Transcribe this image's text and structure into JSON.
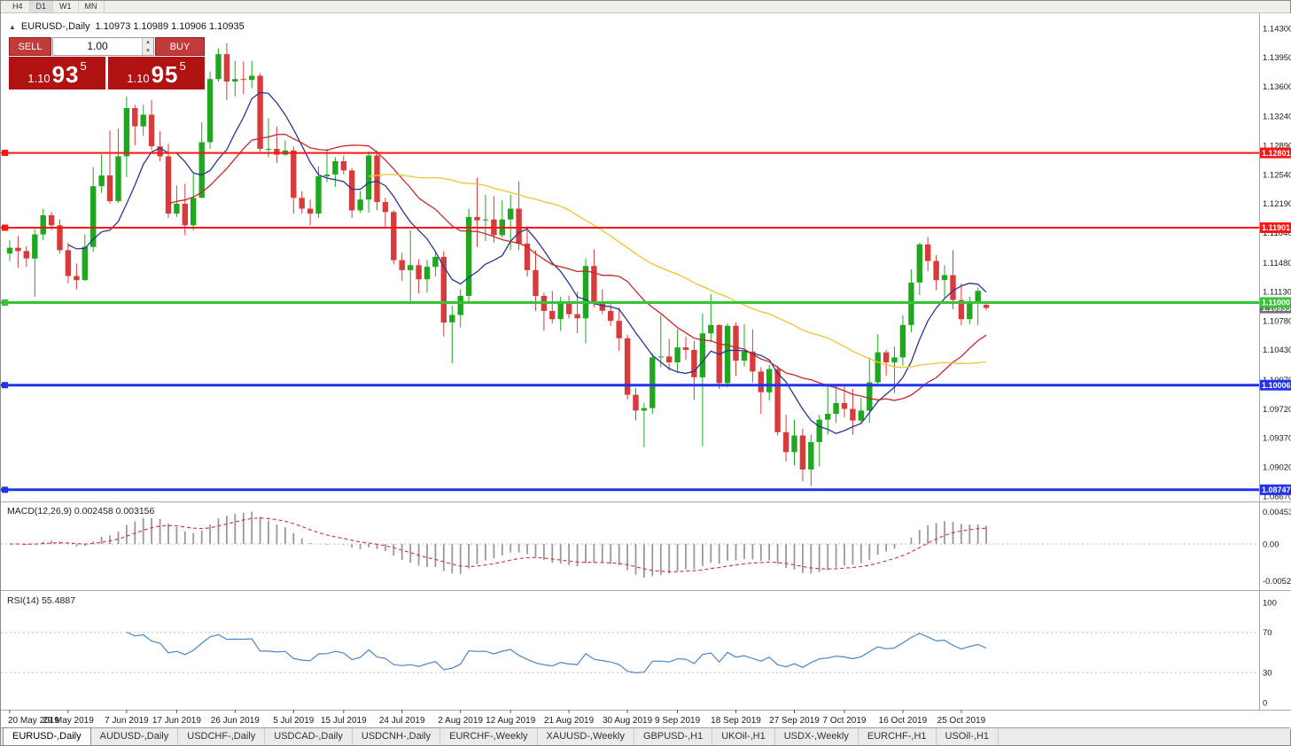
{
  "colors": {
    "bull": "#1FA81F",
    "bear": "#D93B3B",
    "macd_hist": "#999999",
    "macd_signal": "#D03030",
    "rsi_line": "#4A86C8",
    "panel_red": "#B01212",
    "button_red": "#C23B3B",
    "current_tag": "#707070"
  },
  "toolbar": {
    "timeframes": [
      "H4",
      "D1",
      "W1",
      "MN"
    ],
    "active": "D1"
  },
  "chart_header": {
    "collapse_icon": "▲",
    "title": "EURUSD-,Daily",
    "ohlc": "1.10973 1.10989 1.10906 1.10935"
  },
  "trade_panel": {
    "sell_label": "SELL",
    "buy_label": "BUY",
    "volume": "1.00",
    "sell_price": {
      "big": "1.10",
      "pips": "93",
      "point": "5"
    },
    "buy_price": {
      "big": "1.10",
      "pips": "95",
      "point": "5"
    }
  },
  "price_axis": {
    "ticks": [
      "1.14300",
      "1.13950",
      "1.13600",
      "1.13240",
      "1.12890",
      "1.12540",
      "1.12190",
      "1.11840",
      "1.11480",
      "1.11130",
      "1.10780",
      "1.10430",
      "1.10070",
      "1.09720",
      "1.09370",
      "1.09020",
      "1.08670"
    ]
  },
  "indicators": {
    "macd": {
      "title": "MACD(12,26,9) 0.002458 0.003156",
      "scale": [
        {
          "label": "0.00453",
          "value": 0.00453
        },
        {
          "label": "0.00",
          "value": 0
        },
        {
          "label": "-0.00520",
          "value": -0.0052
        }
      ]
    },
    "rsi": {
      "title": "RSI(14) 55.4887",
      "scale": [
        {
          "label": "100",
          "value": 100
        },
        {
          "label": "70",
          "value": 70
        },
        {
          "label": "30",
          "value": 30
        },
        {
          "label": "0",
          "value": 0
        }
      ]
    }
  },
  "date_axis": {
    "labels": [
      {
        "label": "20 May 2019",
        "candle_index": 0
      },
      {
        "label": "29 May 2019",
        "candle_index": 7
      },
      {
        "label": "7 Jun 2019",
        "candle_index": 14
      },
      {
        "label": "17 Jun 2019",
        "candle_index": 20
      },
      {
        "label": "26 Jun 2019",
        "candle_index": 27
      },
      {
        "label": "5 Jul 2019",
        "candle_index": 34
      },
      {
        "label": "15 Jul 2019",
        "candle_index": 40
      },
      {
        "label": "24 Jul 2019",
        "candle_index": 47
      },
      {
        "label": "2 Aug 2019",
        "candle_index": 54
      },
      {
        "label": "12 Aug 2019",
        "candle_index": 60
      },
      {
        "label": "21 Aug 2019",
        "candle_index": 67
      },
      {
        "label": "30 Aug 2019",
        "candle_index": 74
      },
      {
        "label": "9 Sep 2019",
        "candle_index": 80
      },
      {
        "label": "18 Sep 2019",
        "candle_index": 87
      },
      {
        "label": "27 Sep 2019",
        "candle_index": 94
      },
      {
        "label": "7 Oct 2019",
        "candle_index": 100
      },
      {
        "label": "16 Oct 2019",
        "candle_index": 107
      },
      {
        "label": "25 Oct 2019",
        "candle_index": 114
      }
    ]
  },
  "tabs": [
    {
      "label": "EURUSD-,Daily",
      "active": true
    },
    {
      "label": "AUDUSD-,Daily",
      "active": false
    },
    {
      "label": "USDCHF-,Daily",
      "active": false
    },
    {
      "label": "USDCAD-,Daily",
      "active": false
    },
    {
      "label": "USDCNH-,Daily",
      "active": false
    },
    {
      "label": "EURCHF-,Weekly",
      "active": false
    },
    {
      "label": "XAUUSD-,Weekly",
      "active": false
    },
    {
      "label": "GBPUSD-,H1",
      "active": false
    },
    {
      "label": "UKOil-,H1",
      "active": false
    },
    {
      "label": "USDX-,Weekly",
      "active": false
    },
    {
      "label": "EURCHF-,H1",
      "active": false
    },
    {
      "label": "USOil-,H1",
      "active": false
    }
  ],
  "chart_data": {
    "type": "candlestick",
    "symbol": "EURUSD-",
    "period": "Daily",
    "x_start": "20 May 2019",
    "x_end": "30 Oct 2019",
    "y_range": [
      1.085,
      1.1442
    ],
    "ohlc_last": {
      "open": 1.10973,
      "high": 1.10989,
      "low": 1.10906,
      "close": 1.10935
    },
    "ohlc_format": [
      "open",
      "high",
      "low",
      "close"
    ],
    "candles": [
      [
        1.1159,
        1.1175,
        1.115,
        1.1166
      ],
      [
        1.1166,
        1.118,
        1.1142,
        1.1162
      ],
      [
        1.1162,
        1.1168,
        1.1143,
        1.1153
      ],
      [
        1.1153,
        1.1188,
        1.1107,
        1.1182
      ],
      [
        1.1182,
        1.1213,
        1.1175,
        1.1205
      ],
      [
        1.1205,
        1.1209,
        1.1187,
        1.1193
      ],
      [
        1.1193,
        1.12,
        1.1159,
        1.1163
      ],
      [
        1.1163,
        1.1172,
        1.1123,
        1.1132
      ],
      [
        1.1132,
        1.1147,
        1.1116,
        1.1127
      ],
      [
        1.1127,
        1.1182,
        1.1126,
        1.1167
      ],
      [
        1.1167,
        1.1263,
        1.1161,
        1.124
      ],
      [
        1.124,
        1.1278,
        1.1232,
        1.1253
      ],
      [
        1.1253,
        1.1307,
        1.1219,
        1.1222
      ],
      [
        1.1222,
        1.1309,
        1.122,
        1.1276
      ],
      [
        1.1276,
        1.1348,
        1.1251,
        1.1334
      ],
      [
        1.1334,
        1.1338,
        1.1289,
        1.1312
      ],
      [
        1.1312,
        1.1338,
        1.1301,
        1.1326
      ],
      [
        1.1326,
        1.1344,
        1.1284,
        1.1288
      ],
      [
        1.1288,
        1.1306,
        1.127,
        1.1276
      ],
      [
        1.1276,
        1.1291,
        1.1202,
        1.1207
      ],
      [
        1.1207,
        1.1241,
        1.1203,
        1.1219
      ],
      [
        1.1219,
        1.1243,
        1.1181,
        1.1193
      ],
      [
        1.1193,
        1.1255,
        1.1187,
        1.1226
      ],
      [
        1.1226,
        1.1317,
        1.1226,
        1.1293
      ],
      [
        1.1293,
        1.1378,
        1.1285,
        1.1369
      ],
      [
        1.1369,
        1.1406,
        1.1366,
        1.1399
      ],
      [
        1.1399,
        1.1412,
        1.1344,
        1.1366
      ],
      [
        1.1366,
        1.1391,
        1.1348,
        1.1369
      ],
      [
        1.1369,
        1.139,
        1.1351,
        1.1368
      ],
      [
        1.1368,
        1.1391,
        1.1358,
        1.1373
      ],
      [
        1.1373,
        1.1376,
        1.1281,
        1.1285
      ],
      [
        1.1285,
        1.1322,
        1.1275,
        1.1285
      ],
      [
        1.1285,
        1.1312,
        1.1268,
        1.1278
      ],
      [
        1.1278,
        1.1295,
        1.1277,
        1.1283
      ],
      [
        1.1283,
        1.1288,
        1.1207,
        1.1226
      ],
      [
        1.1226,
        1.1234,
        1.1207,
        1.1213
      ],
      [
        1.1213,
        1.1224,
        1.1193,
        1.1207
      ],
      [
        1.1207,
        1.1264,
        1.1202,
        1.1252
      ],
      [
        1.1252,
        1.1285,
        1.1245,
        1.1254
      ],
      [
        1.1254,
        1.1275,
        1.1239,
        1.127
      ],
      [
        1.127,
        1.1277,
        1.1254,
        1.1259
      ],
      [
        1.1259,
        1.1262,
        1.1202,
        1.1211
      ],
      [
        1.1211,
        1.1234,
        1.1208,
        1.1224
      ],
      [
        1.1224,
        1.1282,
        1.1208,
        1.1277
      ],
      [
        1.1277,
        1.1283,
        1.1211,
        1.1221
      ],
      [
        1.1221,
        1.1226,
        1.119,
        1.1209
      ],
      [
        1.1209,
        1.1211,
        1.1146,
        1.1151
      ],
      [
        1.1151,
        1.116,
        1.1126,
        1.1139
      ],
      [
        1.1139,
        1.1187,
        1.1101,
        1.1145
      ],
      [
        1.1145,
        1.1152,
        1.1111,
        1.1128
      ],
      [
        1.1128,
        1.1151,
        1.1112,
        1.1143
      ],
      [
        1.1143,
        1.1162,
        1.1131,
        1.1155
      ],
      [
        1.1155,
        1.1162,
        1.1059,
        1.1076
      ],
      [
        1.1076,
        1.1096,
        1.1027,
        1.1085
      ],
      [
        1.1085,
        1.1116,
        1.107,
        1.1108
      ],
      [
        1.1108,
        1.1213,
        1.1101,
        1.1203
      ],
      [
        1.1203,
        1.125,
        1.1167,
        1.1199
      ],
      [
        1.1199,
        1.123,
        1.1174,
        1.12
      ],
      [
        1.12,
        1.1228,
        1.1172,
        1.1181
      ],
      [
        1.1181,
        1.1223,
        1.1178,
        1.12
      ],
      [
        1.12,
        1.123,
        1.1163,
        1.1213
      ],
      [
        1.1213,
        1.1246,
        1.1163,
        1.1171
      ],
      [
        1.1171,
        1.1192,
        1.1131,
        1.1139
      ],
      [
        1.1139,
        1.1163,
        1.109,
        1.1108
      ],
      [
        1.1108,
        1.1112,
        1.1066,
        1.109
      ],
      [
        1.109,
        1.1114,
        1.1075,
        1.108
      ],
      [
        1.108,
        1.1107,
        1.1066,
        1.1099
      ],
      [
        1.1099,
        1.1108,
        1.1081,
        1.1086
      ],
      [
        1.1086,
        1.1113,
        1.1063,
        1.1081
      ],
      [
        1.1081,
        1.1153,
        1.1051,
        1.1144
      ],
      [
        1.1144,
        1.1164,
        1.1094,
        1.1101
      ],
      [
        1.1101,
        1.1116,
        1.1086,
        1.109
      ],
      [
        1.109,
        1.1098,
        1.1072,
        1.1078
      ],
      [
        1.1078,
        1.1094,
        1.1042,
        1.1057
      ],
      [
        1.1057,
        1.1061,
        1.0983,
        1.0989
      ],
      [
        1.0989,
        1.0997,
        1.0958,
        1.097
      ],
      [
        1.097,
        1.0979,
        1.0926,
        1.0973
      ],
      [
        1.0973,
        1.1039,
        1.0966,
        1.1034
      ],
      [
        1.1034,
        1.1085,
        1.1022,
        1.1035
      ],
      [
        1.1035,
        1.1056,
        1.1018,
        1.1028
      ],
      [
        1.1028,
        1.1068,
        1.1015,
        1.1046
      ],
      [
        1.1046,
        1.1059,
        1.1031,
        1.1043
      ],
      [
        1.1043,
        1.1054,
        1.0983,
        1.101
      ],
      [
        1.101,
        1.1087,
        1.0927,
        1.1063
      ],
      [
        1.1063,
        1.111,
        1.1052,
        1.1073
      ],
      [
        1.1073,
        1.1074,
        1.0996,
        1.1003
      ],
      [
        1.1003,
        1.1075,
        1.0998,
        1.1072
      ],
      [
        1.1072,
        1.1076,
        1.1012,
        1.103
      ],
      [
        1.103,
        1.1074,
        1.1023,
        1.1041
      ],
      [
        1.1041,
        1.1068,
        1.1004,
        1.1017
      ],
      [
        1.1017,
        1.1022,
        1.0966,
        1.0992
      ],
      [
        1.0992,
        1.1025,
        1.0982,
        1.102
      ],
      [
        1.102,
        1.1024,
        1.094,
        1.0944
      ],
      [
        1.0944,
        1.0965,
        1.0909,
        1.092
      ],
      [
        1.092,
        1.0959,
        1.0904,
        1.094
      ],
      [
        1.094,
        1.0948,
        1.0885,
        1.0899
      ],
      [
        1.0899,
        1.0941,
        1.0879,
        1.0932
      ],
      [
        1.0932,
        1.0965,
        1.0903,
        1.0959
      ],
      [
        1.0959,
        1.0999,
        1.0941,
        1.0966
      ],
      [
        1.0966,
        1.0999,
        1.0955,
        1.0979
      ],
      [
        1.0979,
        1.1,
        1.0962,
        1.0972
      ],
      [
        1.0972,
        1.0996,
        1.0941,
        1.0958
      ],
      [
        1.0958,
        1.0985,
        1.0955,
        1.097
      ],
      [
        1.097,
        1.1034,
        1.0955,
        1.1004
      ],
      [
        1.1004,
        1.1062,
        1.1002,
        1.104
      ],
      [
        1.104,
        1.1043,
        1.1012,
        1.1028
      ],
      [
        1.1028,
        1.1047,
        1.0991,
        1.1034
      ],
      [
        1.1034,
        1.1085,
        1.1024,
        1.1073
      ],
      [
        1.1073,
        1.114,
        1.1064,
        1.1124
      ],
      [
        1.1124,
        1.1172,
        1.1109,
        1.117
      ],
      [
        1.117,
        1.1179,
        1.1138,
        1.115
      ],
      [
        1.115,
        1.1157,
        1.1115,
        1.1127
      ],
      [
        1.1127,
        1.1145,
        1.1106,
        1.1133
      ],
      [
        1.1133,
        1.1163,
        1.1092,
        1.1103
      ],
      [
        1.1103,
        1.1123,
        1.1073,
        1.108
      ],
      [
        1.108,
        1.1107,
        1.1074,
        1.1099
      ],
      [
        1.1099,
        1.1118,
        1.1073,
        1.1114
      ],
      [
        1.10973,
        1.10989,
        1.10906,
        1.10935
      ]
    ],
    "moving_averages": [
      {
        "period": 8,
        "color": "#283593"
      },
      {
        "period": 20,
        "color": "#C62828"
      },
      {
        "period": 44,
        "color": "#EFC52C"
      }
    ],
    "horizontal_lines": [
      {
        "price": 1.12801,
        "label": "1.12801",
        "color": "#FF1414",
        "width": 2
      },
      {
        "price": 1.11901,
        "label": "1.11901",
        "color": "#FF1414",
        "width": 2
      },
      {
        "price": 1.11,
        "label": "1.11000",
        "color": "#35C435",
        "width": 3
      },
      {
        "price": 1.10006,
        "label": "1.10006",
        "color": "#2233EE",
        "width": 3
      },
      {
        "price": 1.08747,
        "label": "1.08747",
        "color": "#2233EE",
        "width": 3
      }
    ],
    "current_price": {
      "price": 1.10935,
      "label": "1.10935"
    },
    "macd": {
      "fast": 12,
      "slow": 26,
      "signal": 9,
      "current_macd": 0.002458,
      "current_signal": 0.003156
    },
    "rsi": {
      "period": 14,
      "current": 55.4887,
      "levels": [
        70,
        30
      ]
    }
  }
}
